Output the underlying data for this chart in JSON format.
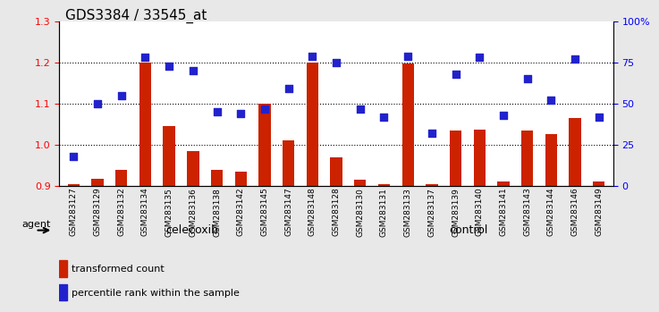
{
  "title": "GDS3384 / 33545_at",
  "samples": [
    "GSM283127",
    "GSM283129",
    "GSM283132",
    "GSM283134",
    "GSM283135",
    "GSM283136",
    "GSM283138",
    "GSM283142",
    "GSM283145",
    "GSM283147",
    "GSM283148",
    "GSM283128",
    "GSM283130",
    "GSM283131",
    "GSM283133",
    "GSM283137",
    "GSM283139",
    "GSM283140",
    "GSM283141",
    "GSM283143",
    "GSM283144",
    "GSM283146",
    "GSM283149"
  ],
  "bar_values": [
    0.905,
    0.918,
    0.94,
    1.2,
    1.045,
    0.985,
    0.94,
    0.935,
    1.1,
    1.01,
    1.2,
    0.97,
    0.915,
    0.905,
    1.198,
    0.905,
    1.035,
    1.038,
    0.91,
    1.035,
    1.025,
    1.065,
    0.91
  ],
  "scatter_percentile": [
    18,
    50,
    55,
    78,
    73,
    70,
    45,
    44,
    47,
    59,
    79,
    75,
    47,
    42,
    79,
    32,
    68,
    78,
    43,
    65,
    52,
    77,
    42
  ],
  "group_labels": [
    "celecoxib",
    "control"
  ],
  "group_counts": [
    11,
    12
  ],
  "celecoxib_color": "#90ee90",
  "control_color": "#90ee90",
  "bar_color": "#cc2200",
  "scatter_color": "#2222cc",
  "ylim_left": [
    0.9,
    1.3
  ],
  "ylim_right": [
    0,
    100
  ],
  "yticks_left": [
    0.9,
    1.0,
    1.1,
    1.2,
    1.3
  ],
  "yticks_right": [
    0,
    25,
    50,
    75,
    100
  ],
  "ytick_labels_right": [
    "0",
    "25",
    "50",
    "75",
    "100%"
  ],
  "background_color": "#e8e8e8",
  "plot_bg": "#ffffff",
  "agent_label": "agent",
  "legend_bar": "transformed count",
  "legend_scatter": "percentile rank within the sample"
}
